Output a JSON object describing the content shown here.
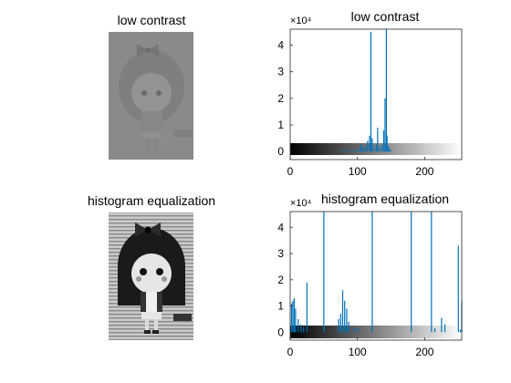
{
  "figure": {
    "background": "#ffffff",
    "bar_color": "#0072bd"
  },
  "panels": {
    "img_low": {
      "title": "low contrast",
      "image": "low-contrast grayscale cartoon girl"
    },
    "img_eq": {
      "title": "histogram equalization",
      "image": "equalized grayscale cartoon girl"
    }
  },
  "chart_data": [
    {
      "type": "bar",
      "title": "low contrast",
      "xlim": [
        0,
        255
      ],
      "ylim": [
        -3000,
        46000
      ],
      "x_ticks": [
        "0",
        "100",
        "200"
      ],
      "y_ticks": [
        "0",
        "1",
        "2",
        "3",
        "4"
      ],
      "y_exponent": "×10⁴",
      "colorbar": "gray ramp 0-255 below axis",
      "x": [
        75,
        80,
        85,
        90,
        95,
        100,
        103,
        106,
        109,
        112,
        115,
        118,
        120,
        122,
        125,
        128,
        130,
        133,
        136,
        139,
        141,
        143,
        144,
        146,
        148,
        150
      ],
      "values": [
        800,
        500,
        700,
        600,
        900,
        700,
        1200,
        2800,
        1500,
        1900,
        4000,
        6000,
        45000,
        5000,
        1200,
        2500,
        9000,
        1500,
        2500,
        8000,
        20000,
        46000,
        6000,
        2000,
        1000,
        300
      ]
    },
    {
      "type": "bar",
      "title": "histogram equalization",
      "xlim": [
        0,
        255
      ],
      "ylim": [
        -3000,
        46000
      ],
      "x_ticks": [
        "0",
        "100",
        "200"
      ],
      "y_ticks": [
        "0",
        "1",
        "2",
        "3",
        "4"
      ],
      "y_exponent": "×10⁴",
      "colorbar": "gray ramp 0-255 below axis",
      "x": [
        2,
        4,
        6,
        8,
        12,
        16,
        20,
        25,
        50,
        72,
        75,
        78,
        81,
        84,
        87,
        95,
        100,
        122,
        180,
        210,
        215,
        225,
        230,
        250,
        253,
        255
      ],
      "values": [
        11000,
        12000,
        13000,
        9000,
        5000,
        3000,
        2000,
        19000,
        46000,
        5000,
        7000,
        16000,
        12000,
        9000,
        4000,
        2000,
        1500,
        46000,
        46000,
        46000,
        1500,
        5500,
        3000,
        33000,
        1000,
        12000
      ]
    }
  ]
}
